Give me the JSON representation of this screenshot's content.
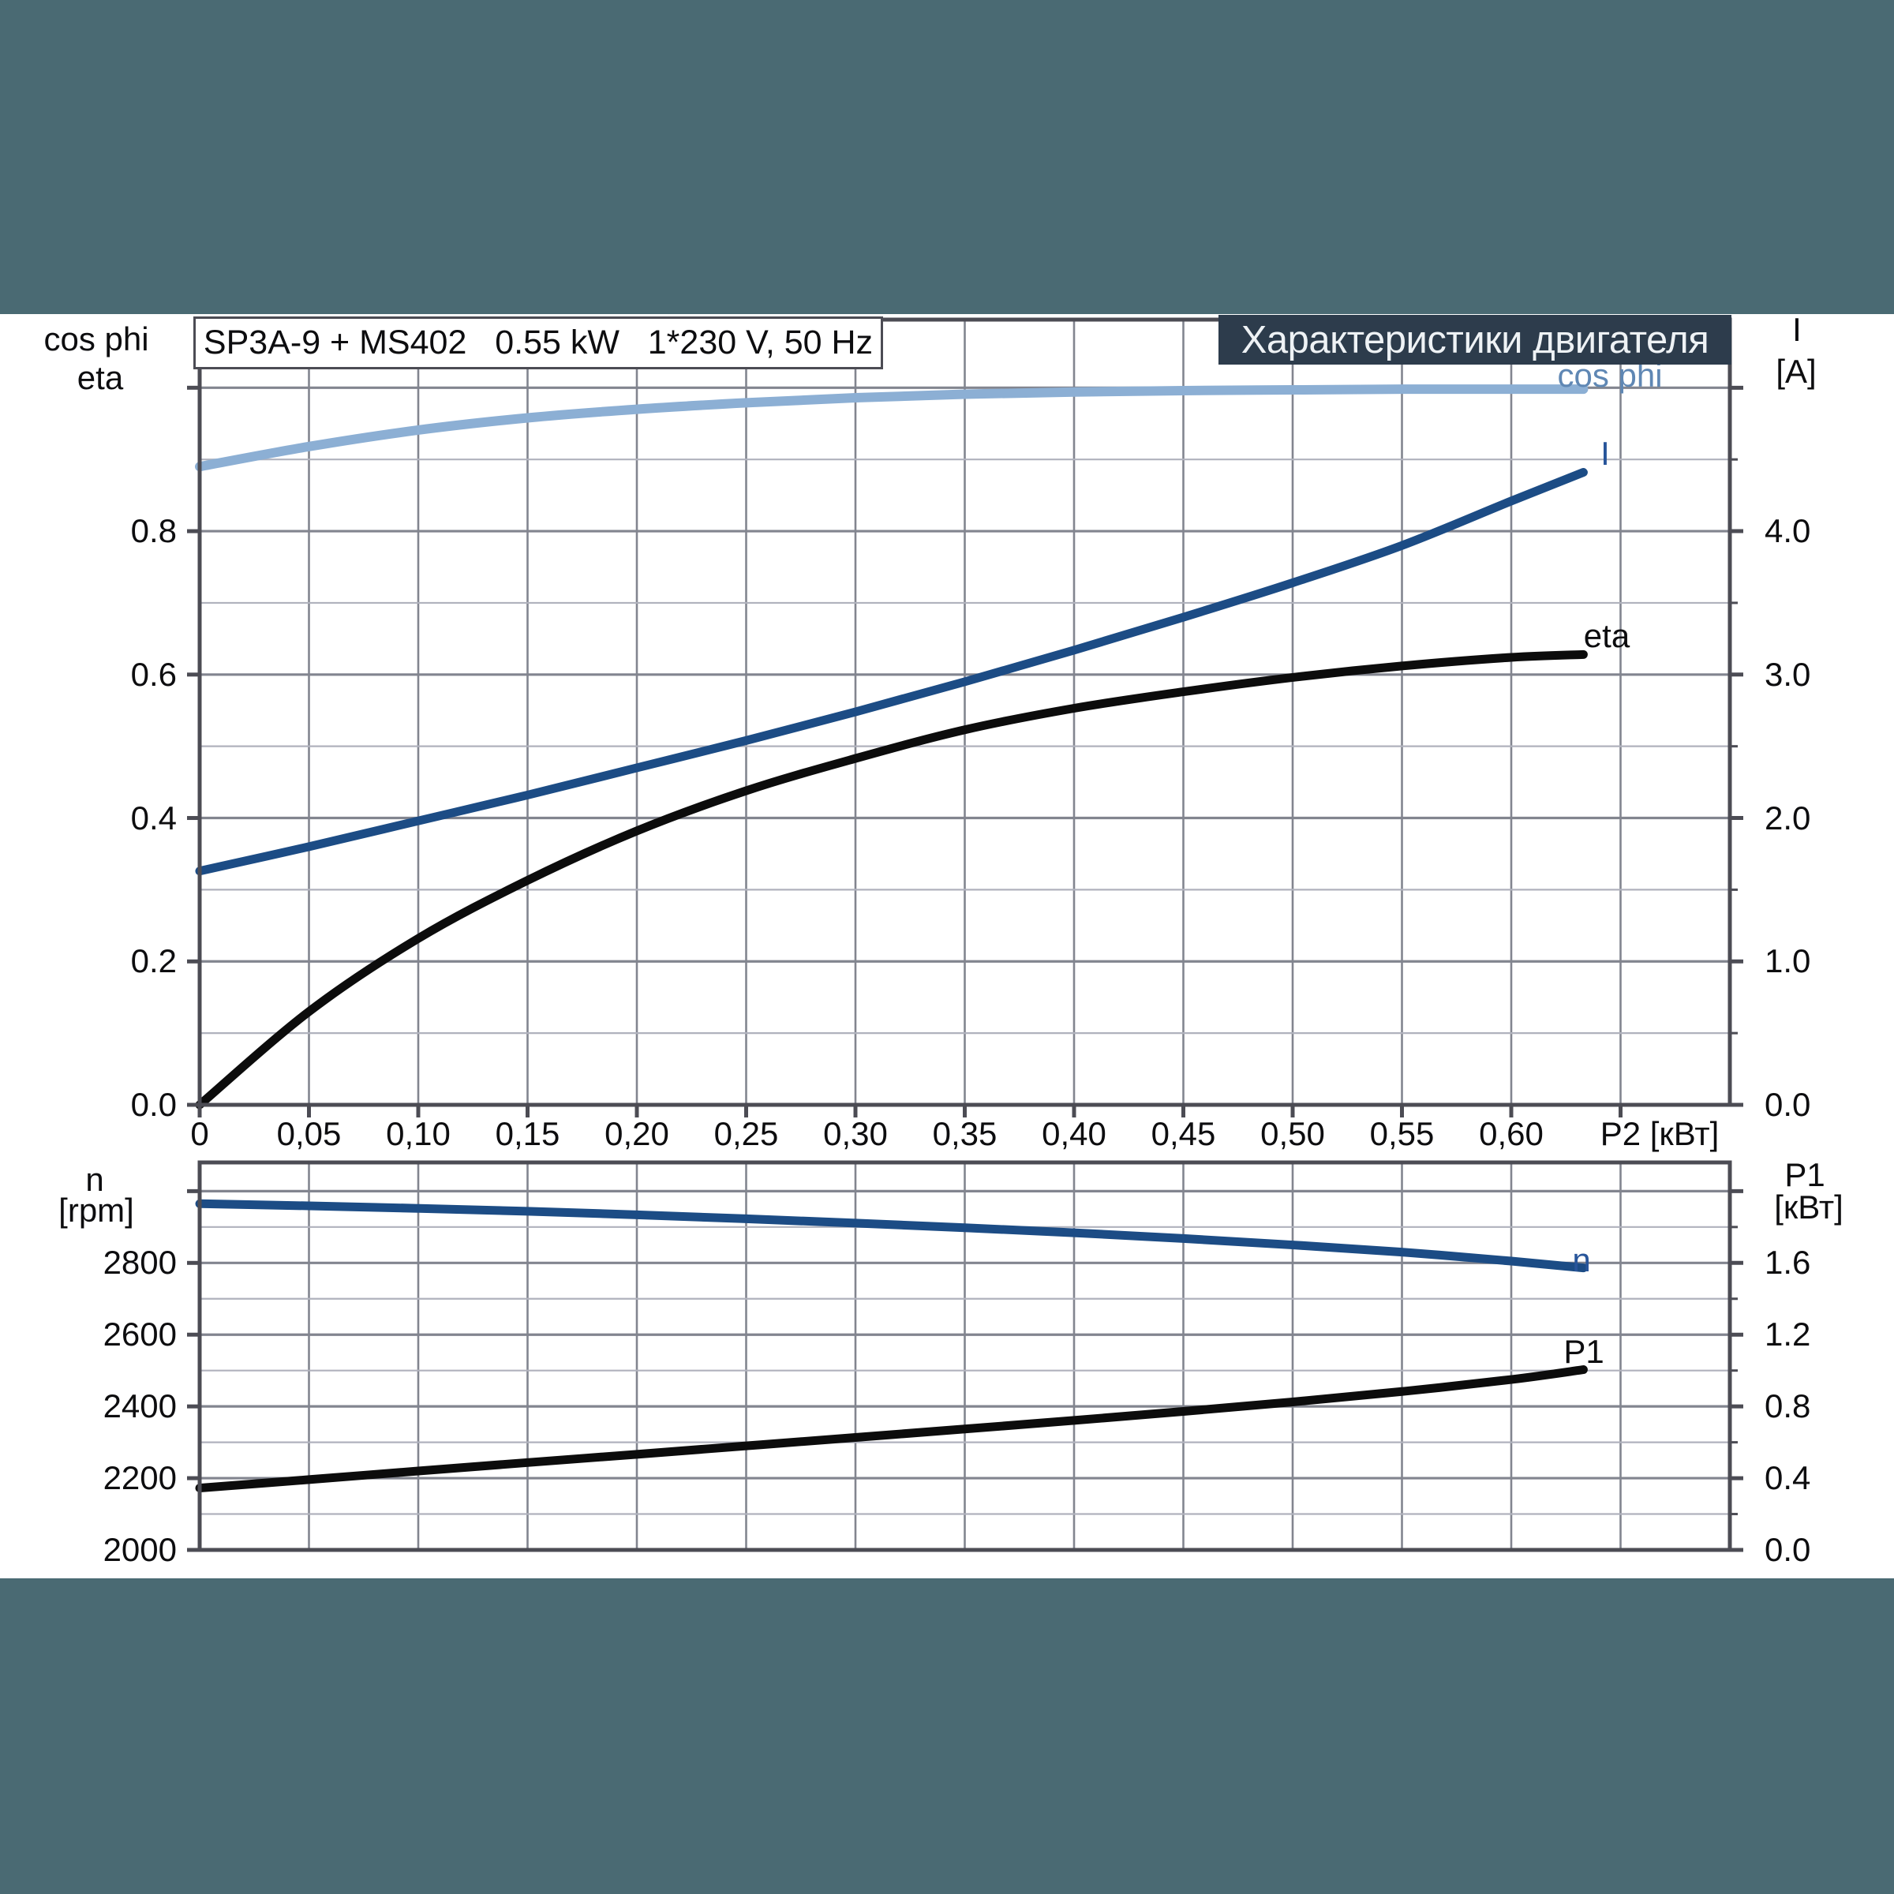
{
  "header": {
    "banner": "Характеристики двигателя"
  },
  "theme": {
    "frame_teal": "#4a6a73",
    "banner_bg": "#2d3c4c",
    "banner_text": "#eef2f5",
    "axis_color": "#4c4c54",
    "grid_minor": "#b0b2bd",
    "grid_major": "#82858f",
    "text_color": "#0d0d0f",
    "curve_blue": "#1c4c85",
    "curve_light_blue": "#8cafd4",
    "curve_black": "#0c0c0c"
  },
  "chart_data": [
    {
      "type": "line",
      "title": "SP3A-9 + MS402   0.55 kW   1*230 V, 50 Hz",
      "x": {
        "label": "P2 [кВт]",
        "min": 0,
        "max": 0.7,
        "grid": [
          0.05,
          0.1,
          0.15,
          0.2,
          0.25,
          0.3,
          0.35,
          0.4,
          0.45,
          0.5,
          0.55,
          0.6,
          0.65
        ]
      },
      "y_left": {
        "title_lines": [
          "cos phi",
          "eta"
        ],
        "min": 0,
        "max": 1.095
      },
      "y_right": {
        "title_lines": [
          "I",
          "[A]"
        ],
        "min": 0,
        "max": 5.475
      },
      "grid_y_minor": [
        0.1,
        0.3,
        0.5,
        0.7,
        0.9
      ],
      "grid_y_major": [
        0.2,
        0.4,
        0.6,
        0.8,
        1.0
      ],
      "ticks_left": [
        {
          "v": 0.0,
          "label": "0.0",
          "major": true
        },
        {
          "v": 0.2,
          "label": "0.2",
          "major": true
        },
        {
          "v": 0.4,
          "label": "0.4",
          "major": true
        },
        {
          "v": 0.6,
          "label": "0.6",
          "major": true
        },
        {
          "v": 0.8,
          "label": "0.8",
          "major": true
        },
        {
          "v": 1.0,
          "label": null,
          "major": true
        }
      ],
      "ticks_right": [
        {
          "v": 0.0,
          "label": "0.0",
          "major": true
        },
        {
          "v": 0.5,
          "label": null,
          "major": false
        },
        {
          "v": 1.0,
          "label": "1.0",
          "major": true
        },
        {
          "v": 1.5,
          "label": null,
          "major": false
        },
        {
          "v": 2.0,
          "label": "2.0",
          "major": true
        },
        {
          "v": 2.5,
          "label": null,
          "major": false
        },
        {
          "v": 3.0,
          "label": "3.0",
          "major": true
        },
        {
          "v": 3.5,
          "label": null,
          "major": false
        },
        {
          "v": 4.0,
          "label": "4.0",
          "major": true
        },
        {
          "v": 4.5,
          "label": null,
          "major": false
        },
        {
          "v": 5.0,
          "label": null,
          "major": true
        }
      ],
      "ticks_x": [
        {
          "v": 0.0,
          "label": "0"
        },
        {
          "v": 0.05,
          "label": "0,05"
        },
        {
          "v": 0.1,
          "label": "0,10"
        },
        {
          "v": 0.15,
          "label": "0,15"
        },
        {
          "v": 0.2,
          "label": "0,20"
        },
        {
          "v": 0.25,
          "label": "0,25"
        },
        {
          "v": 0.3,
          "label": "0,30"
        },
        {
          "v": 0.35,
          "label": "0,35"
        },
        {
          "v": 0.4,
          "label": "0,40"
        },
        {
          "v": 0.45,
          "label": "0,45"
        },
        {
          "v": 0.5,
          "label": "0,50"
        },
        {
          "v": 0.55,
          "label": "0,55"
        },
        {
          "v": 0.6,
          "label": "0,60"
        },
        {
          "v": 0.65,
          "label": null
        }
      ],
      "x_axis_label_pos": {
        "x": 2103,
        "y": 1437
      },
      "titles_left_pos": [
        {
          "x": 122,
          "y": 430
        },
        {
          "x": 127,
          "y": 479
        }
      ],
      "titles_right_pos": [
        {
          "x": 2277,
          "y": 418
        },
        {
          "x": 2276,
          "y": 471
        }
      ],
      "series": [
        {
          "name": "cos phi",
          "axis": "left",
          "color": "#8cafd4",
          "width": 12,
          "label": {
            "text": "cos phi",
            "x": 2040,
            "y": 476,
            "color": "#5f87b4"
          },
          "x": [
            0,
            0.05,
            0.1,
            0.15,
            0.2,
            0.25,
            0.3,
            0.35,
            0.4,
            0.45,
            0.5,
            0.55,
            0.6,
            0.633
          ],
          "y": [
            0.89,
            0.918,
            0.941,
            0.958,
            0.97,
            0.979,
            0.986,
            0.991,
            0.994,
            0.996,
            0.997,
            0.998,
            0.998,
            0.998
          ]
        },
        {
          "name": "I",
          "axis": "right",
          "color": "#1c4c85",
          "width": 11,
          "label": {
            "text": "I",
            "x": 2034,
            "y": 575,
            "color": "#28559a"
          },
          "x": [
            0,
            0.05,
            0.1,
            0.15,
            0.2,
            0.25,
            0.3,
            0.35,
            0.4,
            0.45,
            0.5,
            0.55,
            0.6,
            0.633
          ],
          "y": [
            1.63,
            1.8,
            1.98,
            2.16,
            2.35,
            2.54,
            2.74,
            2.95,
            3.17,
            3.4,
            3.64,
            3.9,
            4.21,
            4.41
          ]
        },
        {
          "name": "eta",
          "axis": "left",
          "color": "#0c0c0c",
          "width": 11,
          "label": {
            "text": "eta",
            "x": 2036,
            "y": 806,
            "color": "#0d0d0f"
          },
          "x": [
            0,
            0.05,
            0.1,
            0.15,
            0.2,
            0.25,
            0.3,
            0.35,
            0.4,
            0.45,
            0.5,
            0.55,
            0.6,
            0.633
          ],
          "y": [
            0.0,
            0.13,
            0.232,
            0.313,
            0.382,
            0.438,
            0.483,
            0.523,
            0.553,
            0.576,
            0.596,
            0.612,
            0.624,
            0.628
          ]
        }
      ]
    },
    {
      "type": "line",
      "title": "",
      "x": {
        "label": "",
        "min": 0,
        "max": 0.7,
        "grid": [
          0.05,
          0.1,
          0.15,
          0.2,
          0.25,
          0.3,
          0.35,
          0.4,
          0.45,
          0.5,
          0.55,
          0.6,
          0.65
        ]
      },
      "y_left": {
        "title_lines": [
          "n",
          "[rpm]"
        ],
        "min": 2000,
        "max": 3080
      },
      "y_right": {
        "title_lines": [
          "P1",
          "[кВт]"
        ],
        "min": 0,
        "max": 2.16
      },
      "grid_y_minor": [
        2100,
        2300,
        2500,
        2700,
        2900
      ],
      "grid_y_major": [
        2200,
        2400,
        2600,
        2800,
        3000
      ],
      "ticks_left": [
        {
          "v": 2000,
          "label": "2000",
          "major": true
        },
        {
          "v": 2200,
          "label": "2200",
          "major": true
        },
        {
          "v": 2400,
          "label": "2400",
          "major": true
        },
        {
          "v": 2600,
          "label": "2600",
          "major": true
        },
        {
          "v": 2800,
          "label": "2800",
          "major": true
        },
        {
          "v": 3000,
          "label": null,
          "major": true
        }
      ],
      "ticks_right": [
        {
          "v": 0.0,
          "label": "0.0",
          "major": true
        },
        {
          "v": 0.2,
          "label": null,
          "major": false
        },
        {
          "v": 0.4,
          "label": "0.4",
          "major": true
        },
        {
          "v": 0.6,
          "label": null,
          "major": false
        },
        {
          "v": 0.8,
          "label": "0.8",
          "major": true
        },
        {
          "v": 1.0,
          "label": null,
          "major": false
        },
        {
          "v": 1.2,
          "label": "1.2",
          "major": true
        },
        {
          "v": 1.4,
          "label": null,
          "major": false
        },
        {
          "v": 1.6,
          "label": "1.6",
          "major": true
        },
        {
          "v": 1.8,
          "label": null,
          "major": false
        },
        {
          "v": 2.0,
          "label": null,
          "major": true
        }
      ],
      "ticks_x": [],
      "x_axis_label_pos": null,
      "titles_left_pos": [
        {
          "x": 120,
          "y": 1495
        },
        {
          "x": 122,
          "y": 1534
        }
      ],
      "titles_right_pos": [
        {
          "x": 2287,
          "y": 1489
        },
        {
          "x": 2292,
          "y": 1530
        }
      ],
      "series": [
        {
          "name": "n",
          "axis": "left",
          "color": "#1c4c85",
          "width": 11,
          "label": {
            "text": "n",
            "x": 2004,
            "y": 1597,
            "color": "#28559a"
          },
          "x": [
            0,
            0.05,
            0.1,
            0.15,
            0.2,
            0.25,
            0.3,
            0.35,
            0.4,
            0.45,
            0.5,
            0.55,
            0.6,
            0.633
          ],
          "y": [
            2965,
            2959,
            2952,
            2944,
            2934,
            2923,
            2911,
            2898,
            2884,
            2868,
            2850,
            2830,
            2805,
            2786
          ]
        },
        {
          "name": "P1",
          "axis": "right",
          "color": "#0c0c0c",
          "width": 11,
          "label": {
            "text": "P1",
            "x": 2007,
            "y": 1713,
            "color": "#0d0d0f"
          },
          "x": [
            0,
            0.05,
            0.1,
            0.15,
            0.2,
            0.25,
            0.3,
            0.35,
            0.4,
            0.45,
            0.5,
            0.55,
            0.6,
            0.633
          ],
          "y": [
            0.345,
            0.392,
            0.44,
            0.487,
            0.533,
            0.58,
            0.627,
            0.674,
            0.722,
            0.772,
            0.825,
            0.883,
            0.95,
            1.005
          ]
        }
      ]
    }
  ]
}
